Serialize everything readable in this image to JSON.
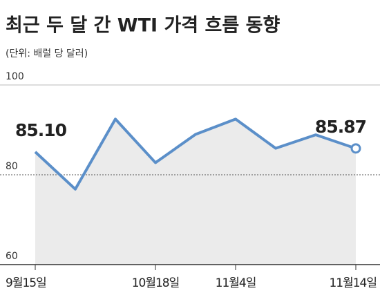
{
  "chart_data": {
    "type": "line",
    "title": "최근 두 달 간 WTI 가격 흐름 동향",
    "subtitle": "(단위: 배럴 당 달러)",
    "categories": [
      "9월15일",
      null,
      null,
      "10월18일",
      null,
      "11월4일",
      null,
      null,
      "11월14일"
    ],
    "series": [
      {
        "name": "WTI",
        "color": "#5b8fc9",
        "values": [
          85.1,
          76.8,
          92.4,
          82.7,
          89.0,
          92.4,
          85.9,
          88.9,
          85.87
        ],
        "value_labels": [
          "85.10",
          null,
          null,
          null,
          null,
          null,
          null,
          null,
          "85.87"
        ]
      }
    ],
    "ylim": [
      60,
      100
    ],
    "yticks": [
      60,
      80,
      100
    ],
    "area": true
  }
}
